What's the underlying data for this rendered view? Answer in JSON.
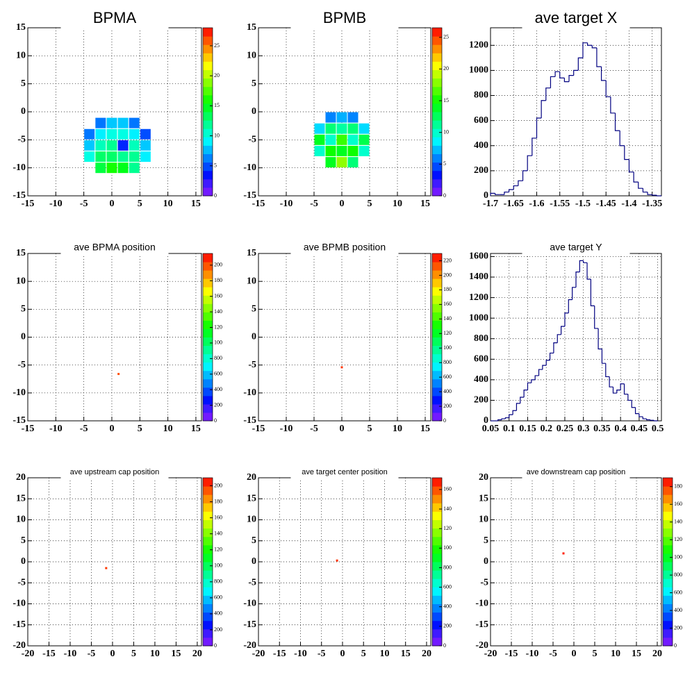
{
  "chart_data": [
    {
      "type": "heatmap",
      "title": "BPMA",
      "x": [
        -2,
        0,
        2,
        4,
        -4,
        -2,
        0,
        2,
        4,
        6,
        -4,
        -2,
        0,
        2,
        4,
        6,
        -4,
        -2,
        0,
        2,
        4,
        6,
        -2,
        0,
        2,
        4
      ],
      "y": [
        -2,
        -2,
        -2,
        -2,
        -4,
        -4,
        -4,
        -4,
        -4,
        -4,
        -6,
        -6,
        -6,
        -6,
        -6,
        -6,
        -8,
        -8,
        -8,
        -8,
        -8,
        -8,
        -10,
        -10,
        -10,
        -10
      ],
      "values": [
        6,
        8,
        8,
        6,
        6,
        9,
        10,
        10,
        9,
        5,
        8,
        11,
        12,
        4,
        11,
        8,
        10,
        13,
        13,
        12,
        12,
        9,
        14,
        16,
        15,
        12
      ],
      "xlim": [
        -15,
        16
      ],
      "ylim": [
        -15,
        15
      ],
      "xticks": [
        -15,
        -10,
        -5,
        0,
        5,
        10,
        15
      ],
      "yticks": [
        -15,
        -10,
        -5,
        0,
        5,
        10,
        15
      ],
      "zlim": [
        0,
        28
      ],
      "zticks": [
        0,
        5,
        10,
        15,
        20,
        25
      ],
      "grid": true
    },
    {
      "type": "heatmap",
      "title": "BPMB",
      "x": [
        -2,
        0,
        2,
        -4,
        -2,
        0,
        2,
        4,
        -4,
        -2,
        0,
        2,
        4,
        -4,
        -2,
        0,
        2,
        4,
        -2,
        0,
        2
      ],
      "y": [
        -1,
        -1,
        -1,
        -3,
        -3,
        -3,
        -3,
        -3,
        -5,
        -5,
        -5,
        -5,
        -5,
        -7,
        -7,
        -7,
        -7,
        -7,
        -9,
        -9,
        -9
      ],
      "values": [
        6,
        7,
        6,
        8,
        12,
        11,
        12,
        8,
        14,
        10,
        16,
        10,
        13,
        10,
        15,
        14,
        15,
        10,
        14,
        18,
        12
      ],
      "xlim": [
        -15,
        16
      ],
      "ylim": [
        -15,
        15
      ],
      "xticks": [
        -15,
        -10,
        -5,
        0,
        5,
        10,
        15
      ],
      "yticks": [
        -15,
        -10,
        -5,
        0,
        5,
        10,
        15
      ],
      "zlim": [
        0,
        26.5
      ],
      "zticks": [
        0,
        5,
        10,
        15,
        20,
        25
      ],
      "grid": true
    },
    {
      "type": "histogram",
      "title": "ave target X",
      "color": "#000080",
      "bins": [
        -1.7,
        -1.69,
        -1.68,
        -1.67,
        -1.66,
        -1.65,
        -1.64,
        -1.63,
        -1.62,
        -1.61,
        -1.6,
        -1.59,
        -1.58,
        -1.57,
        -1.56,
        -1.55,
        -1.54,
        -1.53,
        -1.52,
        -1.51,
        -1.5,
        -1.49,
        -1.48,
        -1.47,
        -1.46,
        -1.45,
        -1.44,
        -1.43,
        -1.42,
        -1.41,
        -1.4,
        -1.39,
        -1.38,
        -1.37,
        -1.36,
        -1.35,
        -1.34,
        -1.33
      ],
      "values": [
        20,
        10,
        10,
        30,
        50,
        80,
        120,
        200,
        320,
        460,
        620,
        760,
        860,
        950,
        990,
        940,
        910,
        960,
        1000,
        1100,
        1220,
        1200,
        1180,
        1030,
        920,
        790,
        660,
        520,
        400,
        290,
        190,
        110,
        60,
        30,
        10,
        5,
        0
      ],
      "xlim": [
        -1.7,
        -1.33
      ],
      "ylim": [
        0,
        1340
      ],
      "xticks": [
        -1.7,
        -1.65,
        -1.6,
        -1.55,
        -1.5,
        -1.45,
        -1.4,
        -1.35
      ],
      "yticks": [
        0,
        200,
        400,
        600,
        800,
        1000,
        1200
      ],
      "grid": true
    },
    {
      "type": "heatmap",
      "title": "ave BPMA position",
      "x": [
        1.2
      ],
      "y": [
        -6.6
      ],
      "values": [
        2000
      ],
      "xlim": [
        -15,
        16
      ],
      "ylim": [
        -15,
        15
      ],
      "xticks": [
        -15,
        -10,
        -5,
        0,
        5,
        10,
        15
      ],
      "yticks": [
        -15,
        -10,
        -5,
        0,
        5,
        10,
        15
      ],
      "zlim": [
        0,
        2150
      ],
      "zticks": [
        0,
        200,
        400,
        600,
        800,
        {
          "value": 1000,
          "label": "100"
        },
        {
          "value": 1200,
          "label": "120"
        },
        {
          "value": 1400,
          "label": "140"
        },
        {
          "value": 1600,
          "label": "160"
        },
        {
          "value": 1800,
          "label": "180"
        },
        {
          "value": 2000,
          "label": "200"
        }
      ],
      "grid": true
    },
    {
      "type": "heatmap",
      "title": "ave BPMB position",
      "x": [
        0
      ],
      "y": [
        -5.4
      ],
      "values": [
        2200
      ],
      "xlim": [
        -15,
        16
      ],
      "ylim": [
        -15,
        15
      ],
      "xticks": [
        -15,
        -10,
        -5,
        0,
        5,
        10,
        15
      ],
      "yticks": [
        -15,
        -10,
        -5,
        0,
        5,
        10,
        15
      ],
      "zlim": [
        0,
        2300
      ],
      "zticks": [
        0,
        200,
        400,
        600,
        800,
        {
          "value": 1000,
          "label": "100"
        },
        {
          "value": 1200,
          "label": "120"
        },
        {
          "value": 1400,
          "label": "140"
        },
        {
          "value": 1600,
          "label": "160"
        },
        {
          "value": 1800,
          "label": "180"
        },
        {
          "value": 2000,
          "label": "200"
        },
        {
          "value": 2200,
          "label": "220"
        }
      ],
      "grid": true
    },
    {
      "type": "histogram",
      "title": "ave target Y",
      "color": "#000080",
      "bins": [
        0.05,
        0.06,
        0.07,
        0.08,
        0.09,
        0.1,
        0.11,
        0.12,
        0.13,
        0.14,
        0.15,
        0.16,
        0.17,
        0.18,
        0.19,
        0.2,
        0.21,
        0.22,
        0.23,
        0.24,
        0.25,
        0.26,
        0.27,
        0.28,
        0.29,
        0.3,
        0.31,
        0.32,
        0.33,
        0.34,
        0.35,
        0.36,
        0.37,
        0.38,
        0.39,
        0.4,
        0.41,
        0.42,
        0.43,
        0.44,
        0.45,
        0.46,
        0.47,
        0.48,
        0.49,
        0.5
      ],
      "values": [
        0,
        0,
        10,
        20,
        30,
        60,
        100,
        170,
        230,
        300,
        370,
        400,
        440,
        500,
        540,
        590,
        660,
        760,
        840,
        920,
        1050,
        1180,
        1300,
        1450,
        1560,
        1540,
        1380,
        1120,
        900,
        700,
        560,
        430,
        330,
        270,
        300,
        360,
        260,
        200,
        130,
        70,
        40,
        20,
        10,
        5,
        0
      ],
      "xlim": [
        0.05,
        0.51
      ],
      "ylim": [
        0,
        1630
      ],
      "xticks": [
        0.05,
        0.1,
        0.15,
        0.2,
        0.25,
        0.3,
        0.35,
        0.4,
        0.45,
        0.5
      ],
      "yticks": [
        0,
        200,
        400,
        600,
        800,
        1000,
        1200,
        1400,
        1600
      ],
      "grid": true
    },
    {
      "type": "heatmap",
      "title": "ave upstream cap position",
      "x": [
        -1.5
      ],
      "y": [
        -1.5
      ],
      "values": [
        2000
      ],
      "xlim": [
        -20,
        21
      ],
      "ylim": [
        -20,
        20
      ],
      "xticks": [
        -20,
        -15,
        -10,
        -5,
        0,
        5,
        10,
        15,
        20
      ],
      "yticks": [
        -20,
        -15,
        -10,
        -5,
        0,
        5,
        10,
        15,
        20
      ],
      "zlim": [
        0,
        2100
      ],
      "zticks": [
        0,
        200,
        400,
        600,
        800,
        {
          "value": 1000,
          "label": "100"
        },
        {
          "value": 1200,
          "label": "120"
        },
        {
          "value": 1400,
          "label": "140"
        },
        {
          "value": 1600,
          "label": "160"
        },
        {
          "value": 1800,
          "label": "180"
        },
        {
          "value": 2000,
          "label": "200"
        }
      ],
      "grid": true
    },
    {
      "type": "heatmap",
      "title": "ave target center  position",
      "x": [
        -1.3
      ],
      "y": [
        0.3
      ],
      "values": [
        1650
      ],
      "xlim": [
        -20,
        21
      ],
      "ylim": [
        -20,
        20
      ],
      "xticks": [
        -20,
        -15,
        -10,
        -5,
        0,
        5,
        10,
        15,
        20
      ],
      "yticks": [
        -20,
        -15,
        -10,
        -5,
        0,
        5,
        10,
        15,
        20
      ],
      "zlim": [
        0,
        1720
      ],
      "zticks": [
        0,
        200,
        400,
        600,
        800,
        {
          "value": 1000,
          "label": "100"
        },
        {
          "value": 1200,
          "label": "120"
        },
        {
          "value": 1400,
          "label": "140"
        },
        {
          "value": 1600,
          "label": "160"
        }
      ],
      "grid": true
    },
    {
      "type": "heatmap",
      "title": "ave downstream cap position",
      "x": [
        -2.5
      ],
      "y": [
        2
      ],
      "values": [
        1850
      ],
      "xlim": [
        -20,
        21
      ],
      "ylim": [
        -20,
        20
      ],
      "xticks": [
        -20,
        -15,
        -10,
        -5,
        0,
        5,
        10,
        15,
        20
      ],
      "yticks": [
        -20,
        -15,
        -10,
        -5,
        0,
        5,
        10,
        15,
        20
      ],
      "zlim": [
        0,
        1900
      ],
      "zticks": [
        0,
        200,
        400,
        600,
        800,
        {
          "value": 1000,
          "label": "100"
        },
        {
          "value": 1200,
          "label": "120"
        },
        {
          "value": 1400,
          "label": "140"
        },
        {
          "value": 1600,
          "label": "160"
        },
        {
          "value": 1800,
          "label": "180"
        }
      ],
      "grid": true
    }
  ]
}
